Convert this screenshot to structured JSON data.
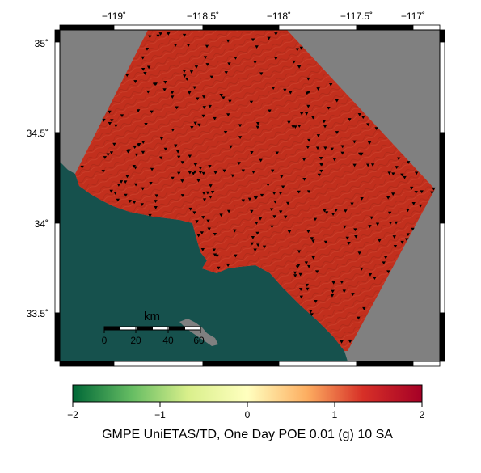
{
  "map": {
    "lon_labels": [
      "−119˚",
      "−118.5˚",
      "−118˚",
      "−117.5˚",
      "−117˚"
    ],
    "lat_labels": [
      "35˚",
      "34.5˚",
      "34˚",
      "33.5˚"
    ],
    "colors": {
      "ocean": "#16514d",
      "no_data": "#808080",
      "field": "#c22f1d",
      "station": "#000000"
    },
    "station_icon": "inverted-triangle-icon"
  },
  "scale_bar": {
    "unit": "km",
    "labels": [
      "0",
      "20",
      "40",
      "60"
    ]
  },
  "colorbar": {
    "tick_labels": [
      "−2",
      "−1",
      "0",
      "1",
      "2"
    ],
    "title": "GMPE UniETAS/TD, One Day POE 0.01 (g) 10 SA",
    "colors": [
      "#006837",
      "#66bd63",
      "#d9ef8b",
      "#ffffbf",
      "#fdae61",
      "#d73027",
      "#a50026"
    ]
  }
}
